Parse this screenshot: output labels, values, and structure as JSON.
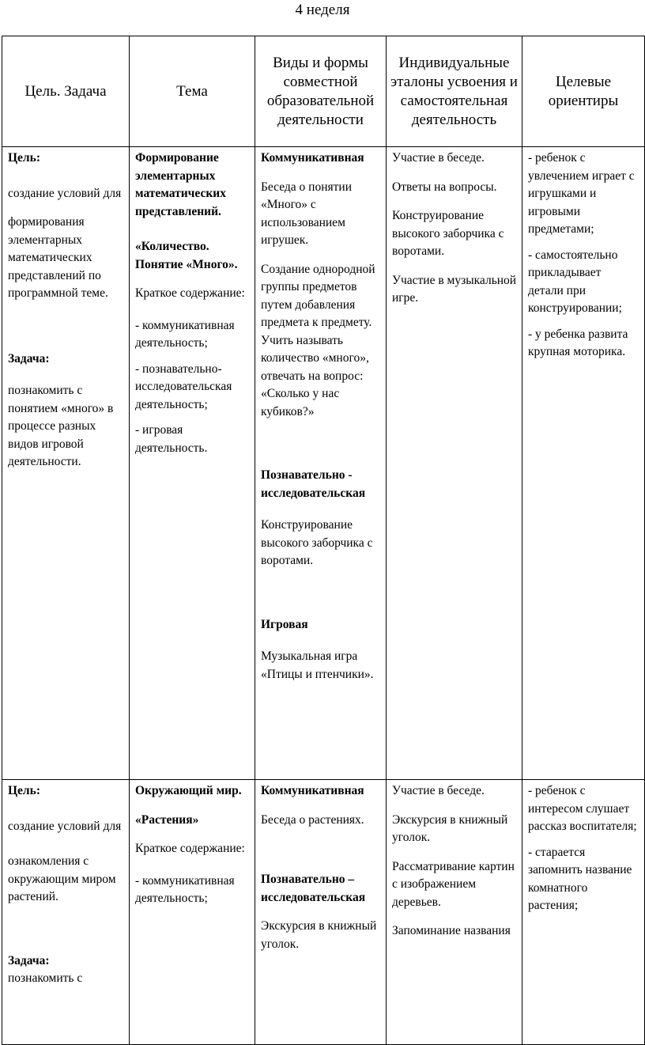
{
  "title": "4 неделя",
  "table": {
    "header": [
      "Цель. Задача",
      "Тема",
      "Виды и формы совместной образовательной деятельности",
      "Индивидуальные эталоны усвоения и самостоятельная деятельность",
      "Целевые ориентиры"
    ],
    "rows": [
      [
        [
          "Цель:",
          "создание условий для",
          "формирования элементарных математических представлений по программной теме.",
          "Задача:",
          "познакомить с понятием «много» в процессе разных видов игровой деятельности."
        ],
        [
          "Формирование элементарных математических представлений.",
          "«Количество. Понятие «Много».",
          "Краткое содержание:",
          "- коммуникативная деятельность;",
          "- познавательно-исследовательская деятельность;",
          "- игровая деятельность."
        ],
        [
          "Коммуникативная",
          "Беседа о понятии «Много» с использованием игрушек.",
          "Создание однородной группы предметов путем добавления предмета к предмету. Учить называть количество «много», отвечать на вопрос: «Сколько у нас кубиков?»",
          "Познавательно - исследовательская",
          "Конструирование высокого заборчика с воротами.",
          "Игровая",
          "Музыкальная игра «Птицы и птенчики»."
        ],
        [
          "Участие в беседе.",
          "Ответы на вопросы.",
          "Конструирование высокого заборчика с воротами.",
          "Участие в музыкальной игре."
        ],
        [
          "- ребенок с увлечением играет с игрушками и игровыми предметами;",
          "- самостоятельно прикладывает детали при конструировании;",
          "- у ребенка развита крупная моторика."
        ]
      ],
      [
        [
          "Цель:",
          "создание условий для",
          "ознакомления с окружающим миром растений.",
          "Задача:",
          "познакомить с"
        ],
        [
          "Окружающий мир.",
          "«Растения»",
          "Краткое содержание:",
          "- коммуникативная деятельность;"
        ],
        [
          "Коммуникативная",
          "Беседа о растениях.",
          "Познавательно – исследовательская",
          "Экскурсия в книжный уголок."
        ],
        [
          "Участие в беседе.",
          "Экскурсия в книжный уголок.",
          "Рассматривание картин с изображением деревьев.",
          "Запоминание названия"
        ],
        [
          "- ребенок с интересом слушает рассказ воспитателя;",
          "- старается запомнить название комнатного растения;"
        ]
      ]
    ]
  }
}
